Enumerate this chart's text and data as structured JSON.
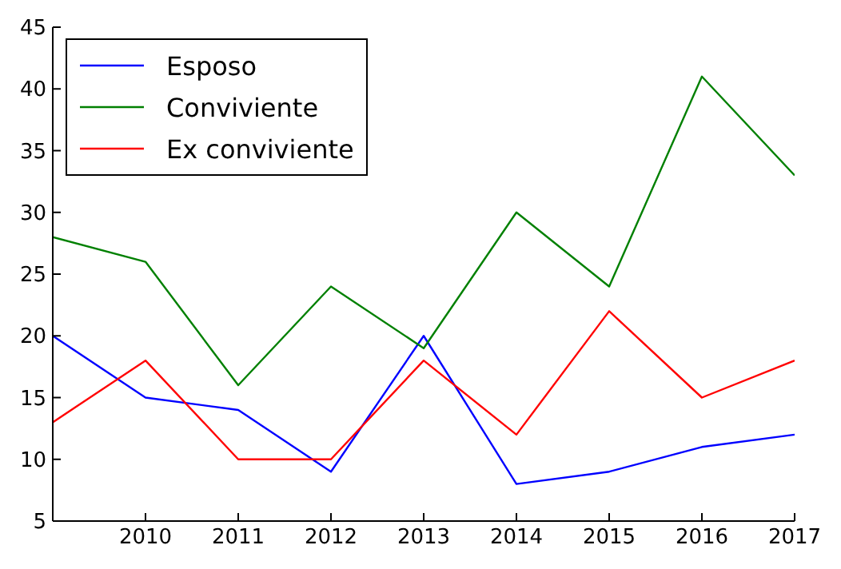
{
  "chart_data": {
    "type": "line",
    "x": [
      2009,
      2010,
      2011,
      2012,
      2013,
      2014,
      2015,
      2016,
      2017
    ],
    "series": [
      {
        "name": "Esposo",
        "color": "#0000ff",
        "values": [
          20,
          15,
          14,
          9,
          20,
          8,
          9,
          11,
          12
        ]
      },
      {
        "name": "Conviviente",
        "color": "#008000",
        "values": [
          28,
          26,
          16,
          24,
          19,
          30,
          24,
          41,
          33
        ]
      },
      {
        "name": "Ex conviviente",
        "color": "#ff0000",
        "values": [
          13,
          18,
          10,
          10,
          18,
          12,
          22,
          15,
          18
        ]
      }
    ],
    "xlim": [
      2009,
      2017
    ],
    "xticks": [
      2010,
      2011,
      2012,
      2013,
      2014,
      2015,
      2016,
      2017
    ],
    "ylim": [
      5,
      45
    ],
    "yticks": [
      5,
      10,
      15,
      20,
      25,
      30,
      35,
      40,
      45
    ],
    "grid": false,
    "legend": "top left",
    "marker": "none",
    "line_style": "solid"
  }
}
